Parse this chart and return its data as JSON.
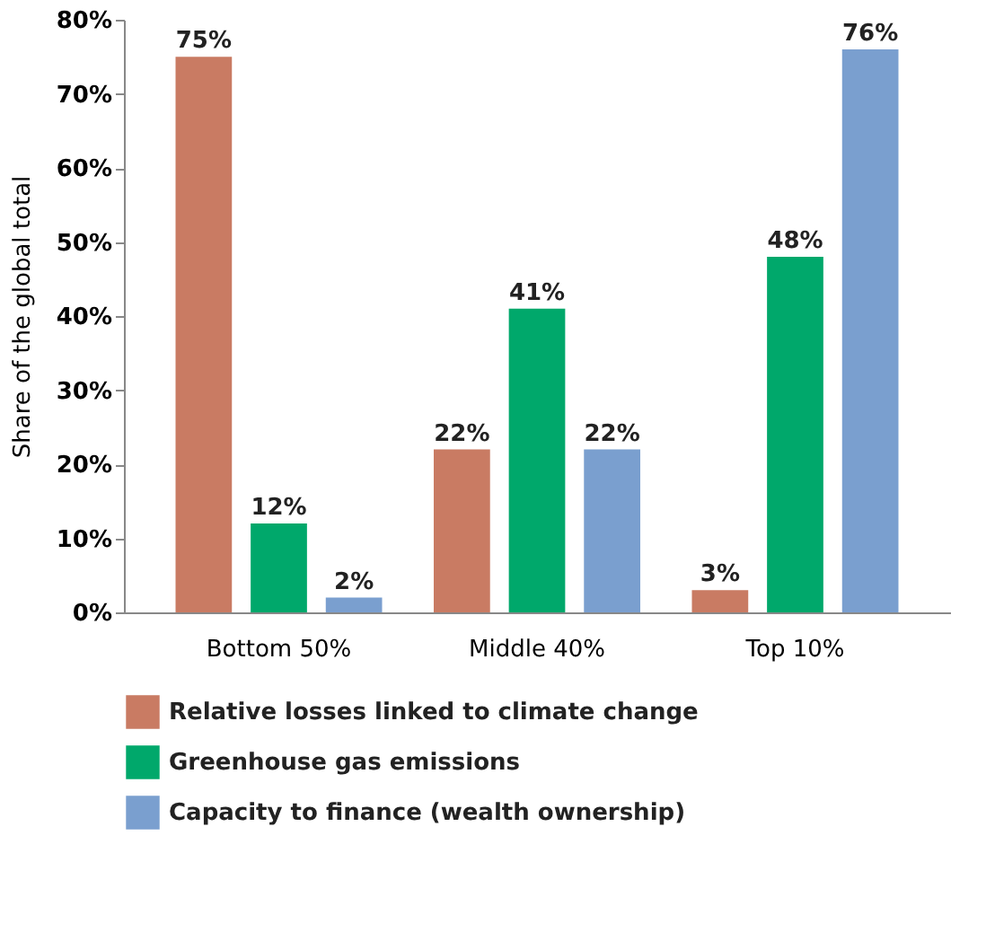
{
  "chart_data": {
    "type": "bar",
    "ylabel": "Share of the global total",
    "categories": [
      "Bottom 50%",
      "Middle 40%",
      "Top 10%"
    ],
    "series": [
      {
        "name": "Relative losses linked to climate change",
        "color": "#c97b63",
        "values": [
          75,
          22,
          3
        ],
        "value_labels": [
          "75%",
          "22%",
          "3%"
        ]
      },
      {
        "name": "Greenhouse gas emissions",
        "color": "#00a86b",
        "values": [
          12,
          41,
          48
        ],
        "value_labels": [
          "12%",
          "41%",
          "48%"
        ]
      },
      {
        "name": "Capacity to finance (wealth ownership)",
        "color": "#7a9fcf",
        "values": [
          2,
          22,
          76
        ],
        "value_labels": [
          "2%",
          "22%",
          "76%"
        ]
      }
    ],
    "ylim": [
      0,
      80
    ],
    "yticks": [
      {
        "value": 0,
        "label": "0%"
      },
      {
        "value": 10,
        "label": "10%"
      },
      {
        "value": 20,
        "label": "20%"
      },
      {
        "value": 30,
        "label": "30%"
      },
      {
        "value": 40,
        "label": "40%"
      },
      {
        "value": 50,
        "label": "50%"
      },
      {
        "value": 60,
        "label": "60%"
      },
      {
        "value": 70,
        "label": "70%"
      },
      {
        "value": 80,
        "label": "80%"
      }
    ],
    "grid": false,
    "legend": "bottom"
  }
}
